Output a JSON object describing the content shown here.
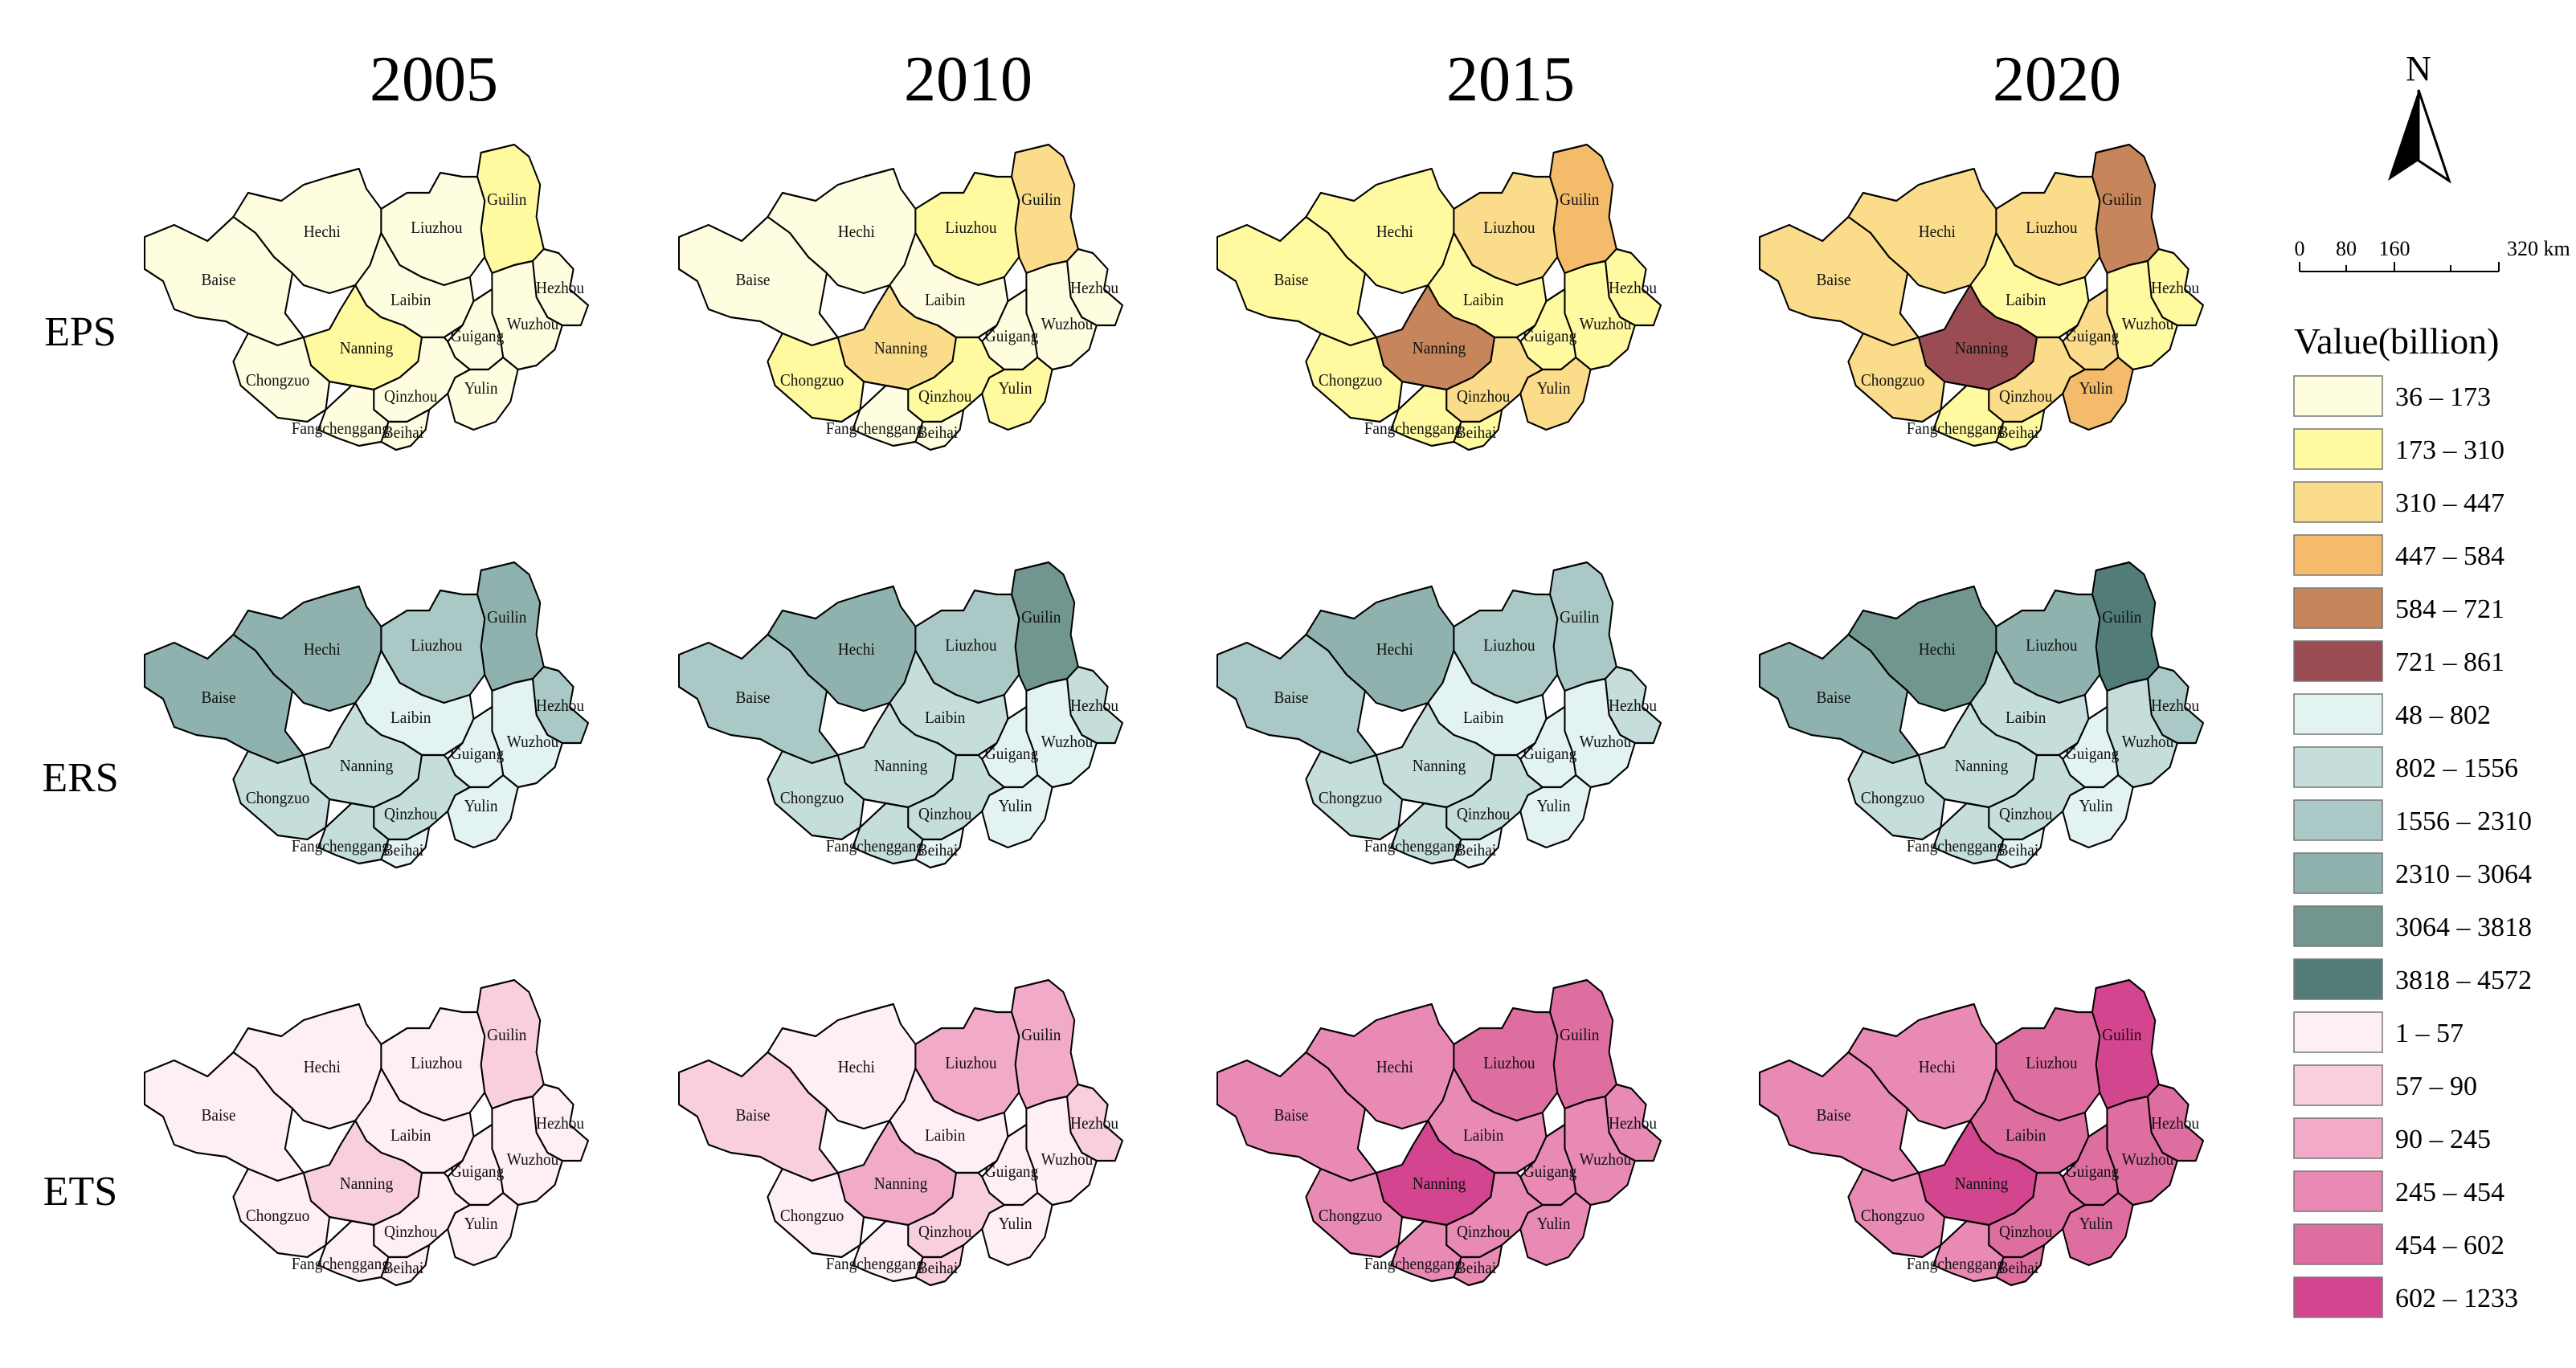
{
  "years": [
    "2005",
    "2010",
    "2015",
    "2020"
  ],
  "rows": [
    {
      "label": "EPS",
      "palette": "eps"
    },
    {
      "label": "ERS",
      "palette": "ers"
    },
    {
      "label": "ETS",
      "palette": "ets"
    }
  ],
  "city_names": [
    "Guilin",
    "Hechi",
    "Liuzhou",
    "Hezhou",
    "Baise",
    "Laibin",
    "Wuzhou",
    "Guigang",
    "Nanning",
    "Chongzuo",
    "Yulin",
    "Qinzhou",
    "Fangchenggang",
    "Beihai"
  ],
  "city_label_text": {
    "Guilin": "Guilin",
    "Hechi": "Hechi",
    "Liuzhou": "Liuzhou",
    "Hezhou": "Hezhou",
    "Baise": "Baise",
    "Laibin": "Laibin",
    "Wuzhou": "Wuzhou",
    "Guigang": "Guigang",
    "Nanning": "Nanning",
    "Chongzuo": "Chongzuo",
    "Yulin": "Yulin",
    "Qinzhou": "Qinzhou",
    "Fangchenggang": "Fangchenggang",
    "Beihai": "Beihai"
  },
  "legend": {
    "title": "Value(billion)",
    "eps": {
      "ranges": [
        "36 – 173",
        "173 – 310",
        "310 – 447",
        "447 – 584",
        "584 – 721",
        "721 – 861"
      ],
      "colors": [
        "#fffde0",
        "#fffaa0",
        "#fbdc8a",
        "#f4bb6b",
        "#c6855a",
        "#9a4c52"
      ]
    },
    "ers": {
      "ranges": [
        "48 – 802",
        "802 – 1556",
        "1556 – 2310",
        "2310 – 3064",
        "3064 – 3818",
        "3818 – 4572"
      ],
      "colors": [
        "#e3f3f1",
        "#c5dedb",
        "#aac9c6",
        "#8fb2ae",
        "#71968f",
        "#527c77"
      ]
    },
    "ets": {
      "ranges": [
        "1 – 57",
        "57 – 90",
        "90 – 245",
        "245 – 454",
        "454 – 602",
        "602 – 1233"
      ],
      "colors": [
        "#feeef6",
        "#f9cfe0",
        "#f2aac9",
        "#e98ab4",
        "#df6ea0",
        "#d4458f"
      ]
    }
  },
  "north_arrow": {
    "label": "N"
  },
  "scale_bar": {
    "ticks": [
      "0",
      "80",
      "160",
      "320 km"
    ]
  },
  "map_classes": {
    "eps": {
      "2005": {
        "Guilin": 1,
        "Hechi": 0,
        "Liuzhou": 0,
        "Hezhou": 0,
        "Baise": 0,
        "Laibin": 0,
        "Wuzhou": 0,
        "Guigang": 0,
        "Nanning": 1,
        "Chongzuo": 0,
        "Yulin": 0,
        "Qinzhou": 0,
        "Fangchenggang": 0,
        "Beihai": 0
      },
      "2010": {
        "Guilin": 2,
        "Hechi": 0,
        "Liuzhou": 1,
        "Hezhou": 0,
        "Baise": 0,
        "Laibin": 0,
        "Wuzhou": 0,
        "Guigang": 0,
        "Nanning": 2,
        "Chongzuo": 1,
        "Yulin": 1,
        "Qinzhou": 1,
        "Fangchenggang": 0,
        "Beihai": 0
      },
      "2015": {
        "Guilin": 3,
        "Hechi": 1,
        "Liuzhou": 2,
        "Hezhou": 1,
        "Baise": 1,
        "Laibin": 1,
        "Wuzhou": 1,
        "Guigang": 1,
        "Nanning": 4,
        "Chongzuo": 1,
        "Yulin": 2,
        "Qinzhou": 2,
        "Fangchenggang": 1,
        "Beihai": 1
      },
      "2020": {
        "Guilin": 4,
        "Hechi": 2,
        "Liuzhou": 2,
        "Hezhou": 1,
        "Baise": 2,
        "Laibin": 1,
        "Wuzhou": 1,
        "Guigang": 2,
        "Nanning": 5,
        "Chongzuo": 2,
        "Yulin": 3,
        "Qinzhou": 2,
        "Fangchenggang": 1,
        "Beihai": 1
      }
    },
    "ers": {
      "2005": {
        "Guilin": 3,
        "Hechi": 3,
        "Liuzhou": 2,
        "Hezhou": 2,
        "Baise": 3,
        "Laibin": 0,
        "Wuzhou": 0,
        "Guigang": 0,
        "Nanning": 1,
        "Chongzuo": 1,
        "Yulin": 0,
        "Qinzhou": 1,
        "Fangchenggang": 1,
        "Beihai": 0
      },
      "2010": {
        "Guilin": 4,
        "Hechi": 3,
        "Liuzhou": 2,
        "Hezhou": 1,
        "Baise": 2,
        "Laibin": 1,
        "Wuzhou": 0,
        "Guigang": 0,
        "Nanning": 1,
        "Chongzuo": 1,
        "Yulin": 0,
        "Qinzhou": 1,
        "Fangchenggang": 1,
        "Beihai": 0
      },
      "2015": {
        "Guilin": 2,
        "Hechi": 3,
        "Liuzhou": 2,
        "Hezhou": 1,
        "Baise": 2,
        "Laibin": 0,
        "Wuzhou": 0,
        "Guigang": 0,
        "Nanning": 1,
        "Chongzuo": 1,
        "Yulin": 0,
        "Qinzhou": 1,
        "Fangchenggang": 1,
        "Beihai": 0
      },
      "2020": {
        "Guilin": 5,
        "Hechi": 4,
        "Liuzhou": 3,
        "Hezhou": 2,
        "Baise": 3,
        "Laibin": 1,
        "Wuzhou": 1,
        "Guigang": 0,
        "Nanning": 1,
        "Chongzuo": 1,
        "Yulin": 0,
        "Qinzhou": 1,
        "Fangchenggang": 1,
        "Beihai": 0
      }
    },
    "ets": {
      "2005": {
        "Guilin": 1,
        "Hechi": 0,
        "Liuzhou": 0,
        "Hezhou": 0,
        "Baise": 0,
        "Laibin": 0,
        "Wuzhou": 0,
        "Guigang": 0,
        "Nanning": 1,
        "Chongzuo": 0,
        "Yulin": 0,
        "Qinzhou": 0,
        "Fangchenggang": 0,
        "Beihai": 0
      },
      "2010": {
        "Guilin": 2,
        "Hechi": 0,
        "Liuzhou": 2,
        "Hezhou": 1,
        "Baise": 1,
        "Laibin": 0,
        "Wuzhou": 0,
        "Guigang": 0,
        "Nanning": 2,
        "Chongzuo": 0,
        "Yulin": 0,
        "Qinzhou": 1,
        "Fangchenggang": 0,
        "Beihai": 1
      },
      "2015": {
        "Guilin": 4,
        "Hechi": 3,
        "Liuzhou": 4,
        "Hezhou": 3,
        "Baise": 3,
        "Laibin": 3,
        "Wuzhou": 3,
        "Guigang": 3,
        "Nanning": 5,
        "Chongzuo": 3,
        "Yulin": 3,
        "Qinzhou": 3,
        "Fangchenggang": 3,
        "Beihai": 3
      },
      "2020": {
        "Guilin": 5,
        "Hechi": 3,
        "Liuzhou": 4,
        "Hezhou": 4,
        "Baise": 3,
        "Laibin": 4,
        "Wuzhou": 4,
        "Guigang": 4,
        "Nanning": 5,
        "Chongzuo": 3,
        "Yulin": 4,
        "Qinzhou": 4,
        "Fangchenggang": 3,
        "Beihai": 4
      }
    }
  }
}
